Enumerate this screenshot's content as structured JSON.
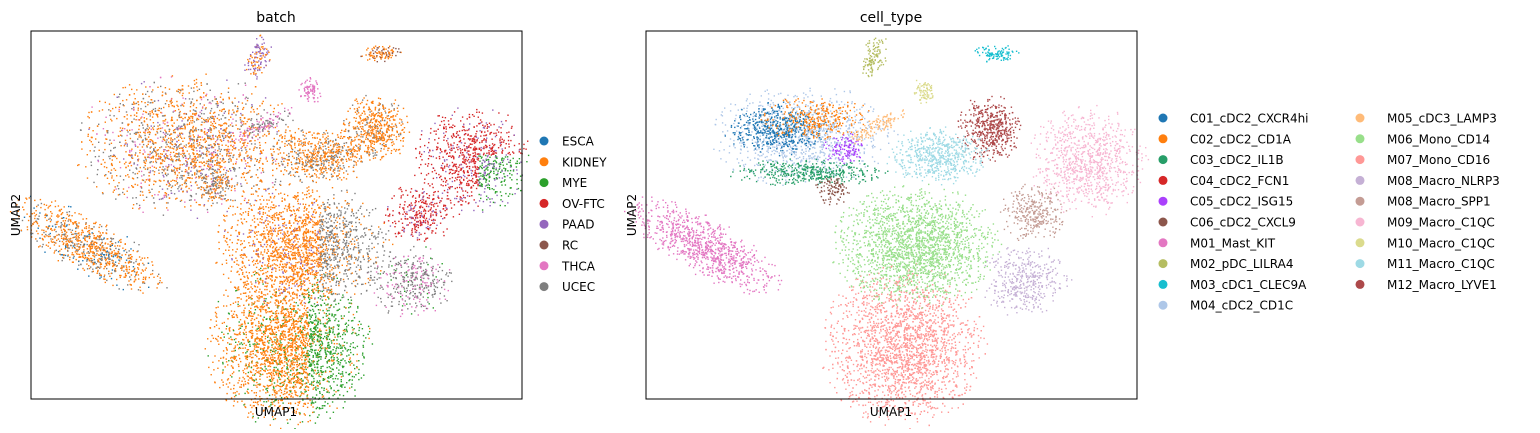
{
  "chart_data": [
    {
      "type": "scatter",
      "title": "batch",
      "xlabel": "UMAP1",
      "ylabel": "UMAP2",
      "grid": false,
      "legend_position": "right",
      "legend": [
        {
          "name": "ESCA",
          "color": "#1f77b4"
        },
        {
          "name": "KIDNEY",
          "color": "#ff7f0e"
        },
        {
          "name": "MYE",
          "color": "#2ca02c"
        },
        {
          "name": "OV-FTC",
          "color": "#d62728"
        },
        {
          "name": "PAAD",
          "color": "#9467bd"
        },
        {
          "name": "RC",
          "color": "#8c564b"
        },
        {
          "name": "THCA",
          "color": "#e377c2"
        },
        {
          "name": "UCEC",
          "color": "#7f7f7f"
        }
      ]
    },
    {
      "type": "scatter",
      "title": "cell_type",
      "xlabel": "UMAP1",
      "ylabel": "UMAP2",
      "grid": false,
      "legend_position": "right",
      "legend": [
        {
          "name": "C01_cDC2_CXCR4hi",
          "color": "#1f77b4"
        },
        {
          "name": "C02_cDC2_CD1A",
          "color": "#ff7f0e"
        },
        {
          "name": "C03_cDC2_IL1B",
          "color": "#279e68"
        },
        {
          "name": "C04_cDC2_FCN1",
          "color": "#d62728"
        },
        {
          "name": "C05_cDC2_ISG15",
          "color": "#aa40fc"
        },
        {
          "name": "C06_cDC2_CXCL9",
          "color": "#8c564b"
        },
        {
          "name": "M01_Mast_KIT",
          "color": "#e377c2"
        },
        {
          "name": "M02_pDC_LILRA4",
          "color": "#b5bd61"
        },
        {
          "name": "M03_cDC1_CLEC9A",
          "color": "#17becf"
        },
        {
          "name": "M04_cDC2_CD1C",
          "color": "#aec7e8"
        },
        {
          "name": "M05_cDC3_LAMP3",
          "color": "#ffbb78"
        },
        {
          "name": "M06_Mono_CD14",
          "color": "#98df8a"
        },
        {
          "name": "M07_Mono_CD16",
          "color": "#ff9896"
        },
        {
          "name": "M08_Macro_NLRP3",
          "color": "#c5b0d5"
        },
        {
          "name": "M08_Macro_SPP1",
          "color": "#c49c94"
        },
        {
          "name": "M09_Macro_C1QC",
          "color": "#f7b6d2"
        },
        {
          "name": "M10_Macro_C1QC",
          "color": "#dbdb8d"
        },
        {
          "name": "M11_Macro_C1QC",
          "color": "#9edae5"
        },
        {
          "name": "M12_Macro_LYVE1",
          "color": "#ad494a"
        }
      ]
    }
  ]
}
